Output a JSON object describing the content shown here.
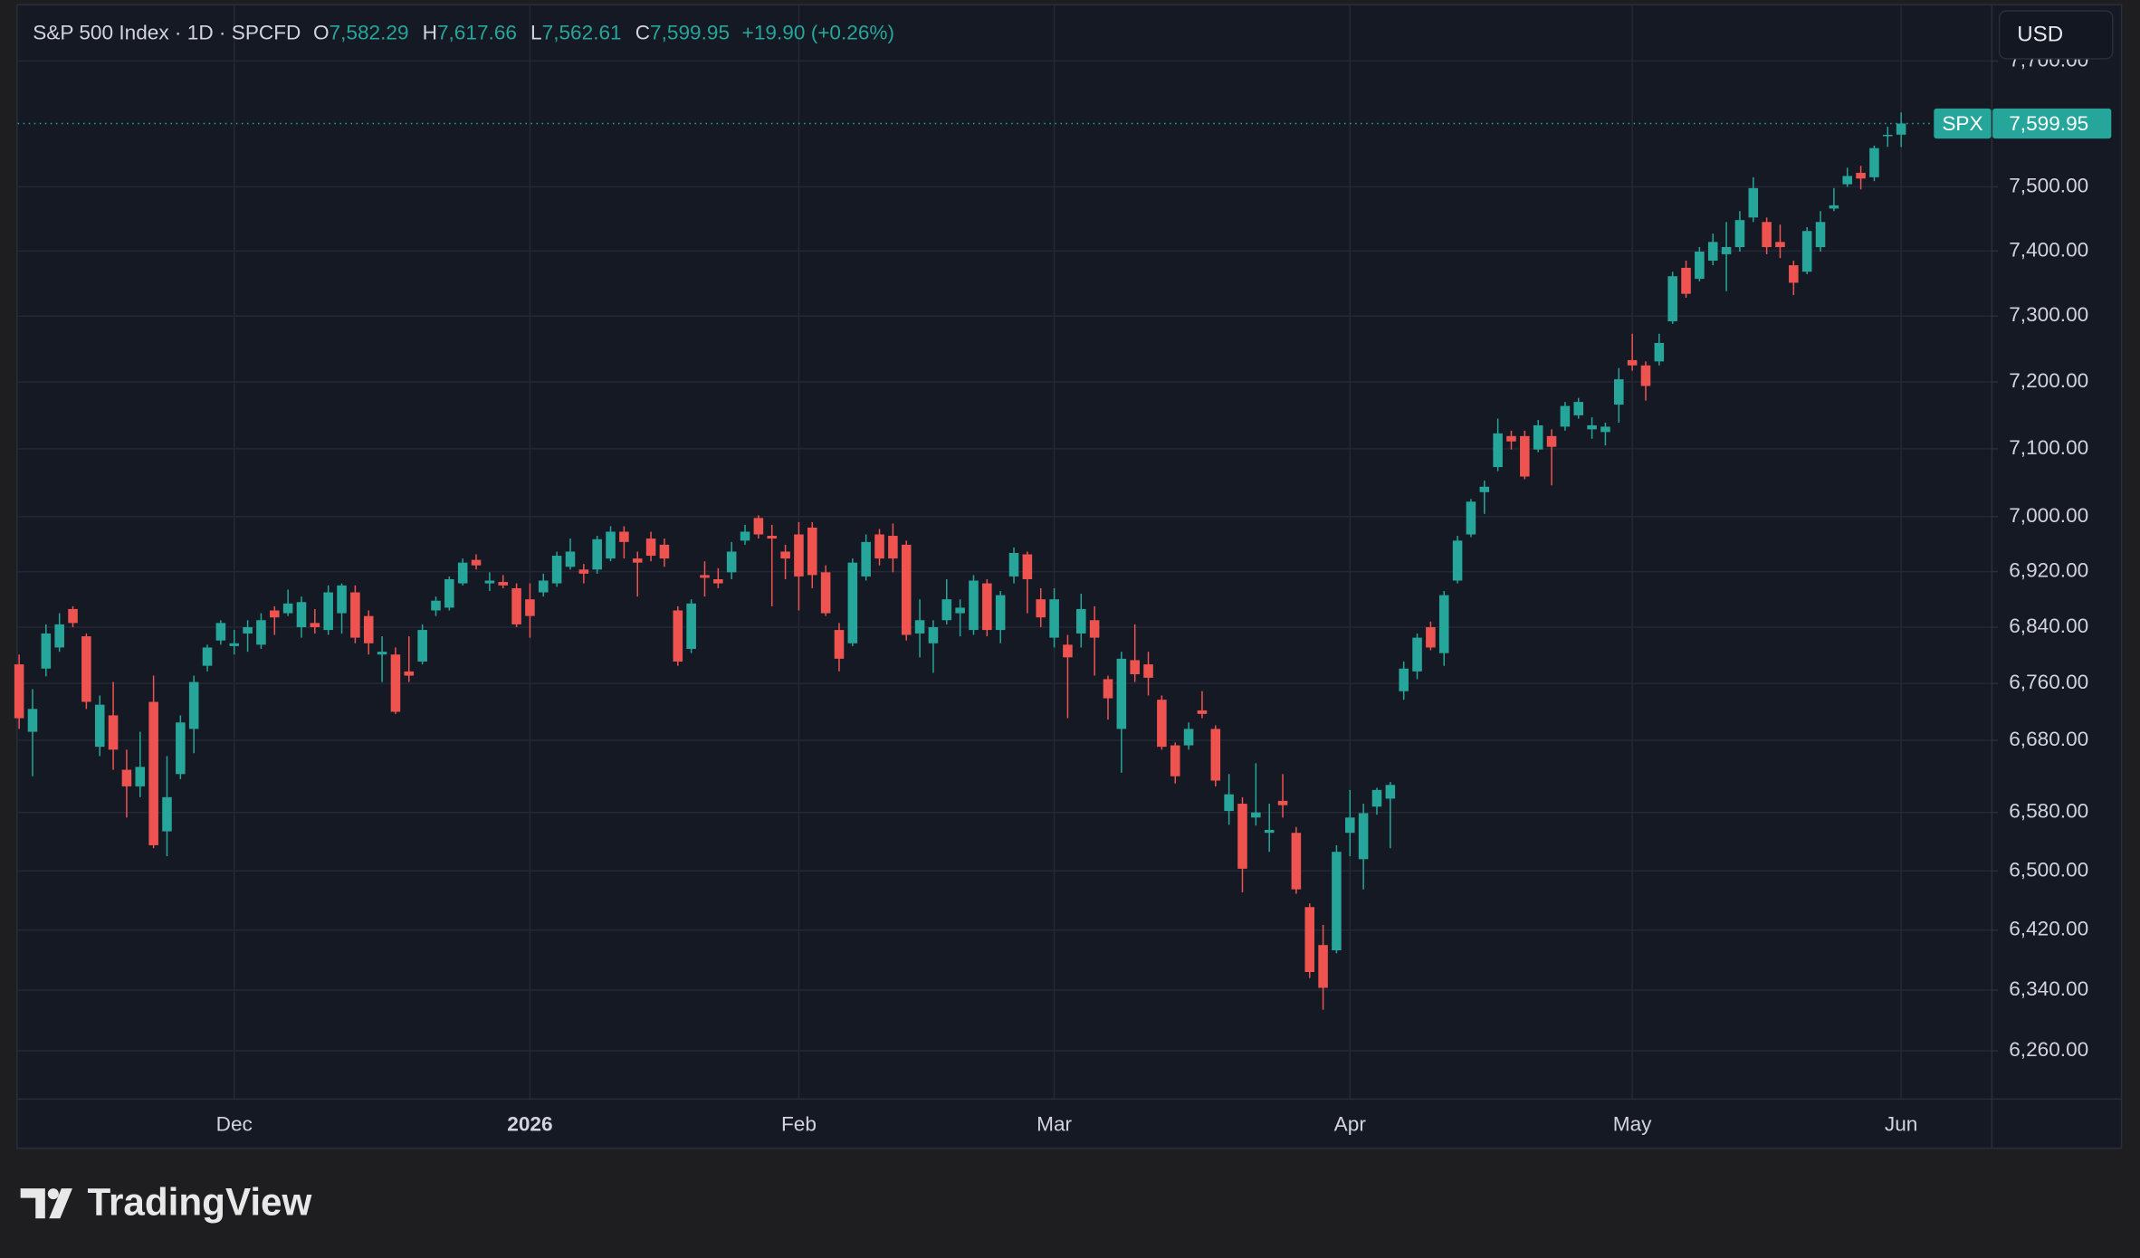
{
  "header": {
    "title": "S&P 500 Index · 1D · SPCFD",
    "fields": [
      {
        "letter": "O",
        "value": "7,582.29"
      },
      {
        "letter": "H",
        "value": "7,617.66"
      },
      {
        "letter": "L",
        "value": "7,562.61"
      },
      {
        "letter": "C",
        "value": "7,599.95"
      }
    ],
    "change": "+19.90 (+0.26%)"
  },
  "currency": "USD",
  "branding": "TradingView",
  "chart_data": {
    "type": "candlestick",
    "log_scale": true,
    "grid": true,
    "up_color": "#26a69a",
    "down_color": "#ef5350",
    "xlim": [
      -0.1,
      146.7
    ],
    "xticks": [
      {
        "value": 16,
        "label": "Dec"
      },
      {
        "value": 38,
        "label": "2026"
      },
      {
        "value": 58,
        "label": "Feb"
      },
      {
        "value": 77,
        "label": "Mar"
      },
      {
        "value": 99,
        "label": "Apr"
      },
      {
        "value": 120,
        "label": "May"
      },
      {
        "value": 140,
        "label": "Jun"
      }
    ],
    "ylim": [
      6198,
      7790
    ],
    "yticks": [
      {
        "value": 6260,
        "label": "6,260.00"
      },
      {
        "value": 6340,
        "label": "6,340.00"
      },
      {
        "value": 6420,
        "label": "6,420.00"
      },
      {
        "value": 6500,
        "label": "6,500.00"
      },
      {
        "value": 6580,
        "label": "6,580.00"
      },
      {
        "value": 6680,
        "label": "6,680.00"
      },
      {
        "value": 6760,
        "label": "6,760.00"
      },
      {
        "value": 6840,
        "label": "6,840.00"
      },
      {
        "value": 6920,
        "label": "6,920.00"
      },
      {
        "value": 7000,
        "label": "7,000.00"
      },
      {
        "value": 7100,
        "label": "7,100.00"
      },
      {
        "value": 7200,
        "label": "7,200.00"
      },
      {
        "value": 7300,
        "label": "7,300.00"
      },
      {
        "value": 7400,
        "label": "7,400.00"
      },
      {
        "value": 7500,
        "label": "7,500.00"
      },
      {
        "value": 7700,
        "label": "7,700.00"
      }
    ],
    "series": [
      {
        "name": "SPX",
        "last_label": "7,599.95",
        "open": [
          6787,
          6692,
          6781,
          6811,
          6866,
          6827,
          6671,
          6715,
          6639,
          6616,
          6734,
          6554,
          6633,
          6696,
          6785,
          6821,
          6813,
          6831,
          6815,
          6864,
          6860,
          6840,
          6846,
          6836,
          6860,
          6890,
          6856,
          6801,
          6801,
          6777,
          6791,
          6864,
          6868,
          6903,
          6937,
          6903,
          6905,
          6896,
          6880,
          6890,
          6903,
          6927,
          6923,
          6923,
          6939,
          6978,
          6939,
          6968,
          6959,
          6864,
          6809,
          6915,
          6909,
          6919,
          6965,
          6998,
          6972,
          6949,
          6974,
          6984,
          6919,
          6836,
          6817,
          6913,
          6974,
          6972,
          6959,
          6831,
          6817,
          6850,
          6860,
          6836,
          6903,
          6836,
          6913,
          6945,
          6880,
          6825,
          6815,
          6831,
          6850,
          6766,
          6696,
          6793,
          6787,
          6737,
          6673,
          6673,
          6722,
          6696,
          6582,
          6592,
          6573,
          6552,
          6596,
          6552,
          6451,
          6400,
          6393,
          6552,
          6516,
          6588,
          6599,
          6749,
          6777,
          6840,
          6803,
          6907,
          6974,
          7036,
          7073,
          7119,
          7119,
          7099,
          7119,
          7133,
          7150,
          7129,
          7125,
          7166,
          7233,
          7225,
          7231,
          7292,
          7374,
          7357,
          7385,
          7395,
          7406,
          7452,
          7445,
          7414,
          7378,
          7368,
          7406,
          7466,
          7504,
          7522,
          7515,
          7580,
          7582.29
        ],
        "high": [
          6801,
          6752,
          6844,
          6860,
          6870,
          6831,
          6743,
          6762,
          6667,
          6692,
          6771,
          6658,
          6715,
          6771,
          6815,
          6850,
          6836,
          6850,
          6860,
          6870,
          6894,
          6884,
          6866,
          6900,
          6903,
          6900,
          6864,
          6827,
          6811,
          6827,
          6844,
          6884,
          6913,
          6939,
          6945,
          6919,
          6915,
          6903,
          6903,
          6917,
          6949,
          6968,
          6931,
          6972,
          6986,
          6986,
          6949,
          6978,
          6968,
          6870,
          6880,
          6935,
          6925,
          6963,
          6988,
          7002,
          6988,
          6959,
          6992,
          6992,
          6929,
          6846,
          6939,
          6974,
          6982,
          6990,
          6965,
          6880,
          6850,
          6909,
          6880,
          6915,
          6909,
          6892,
          6955,
          6949,
          6896,
          6896,
          6829,
          6888,
          6870,
          6771,
          6805,
          6844,
          6805,
          6743,
          6677,
          6705,
          6749,
          6701,
          6633,
          6601,
          6648,
          6592,
          6633,
          6560,
          6456,
          6427,
          6535,
          6611,
          6592,
          6614,
          6622,
          6791,
          6831,
          6848,
          6892,
          6972,
          7026,
          7053,
          7145,
          7127,
          7127,
          7143,
          7129,
          7170,
          7176,
          7147,
          7139,
          7221,
          7273,
          7231,
          7273,
          7368,
          7385,
          7406,
          7427,
          7445,
          7462,
          7515,
          7452,
          7441,
          7385,
          7437,
          7462,
          7498,
          7530,
          7533,
          7565,
          7595,
          7617.66
        ],
        "low": [
          6696,
          6630,
          6770,
          6805,
          6840,
          6724,
          6658,
          6639,
          6573,
          6601,
          6531,
          6520,
          6626,
          6662,
          6777,
          6815,
          6801,
          6805,
          6809,
          6829,
          6856,
          6825,
          6831,
          6829,
          6831,
          6817,
          6801,
          6762,
          6717,
          6762,
          6787,
          6856,
          6864,
          6900,
          6923,
          6892,
          6896,
          6840,
          6825,
          6884,
          6898,
          6923,
          6903,
          6917,
          6935,
          6939,
          6884,
          6935,
          6927,
          6785,
          6803,
          6884,
          6896,
          6909,
          6959,
          6968,
          6870,
          6909,
          6864,
          6896,
          6856,
          6777,
          6813,
          6907,
          6929,
          6919,
          6821,
          6797,
          6775,
          6844,
          6827,
          6829,
          6827,
          6817,
          6903,
          6860,
          6840,
          6811,
          6711,
          6811,
          6771,
          6709,
          6635,
          6762,
          6743,
          6667,
          6620,
          6667,
          6711,
          6616,
          6563,
          6471,
          6562,
          6526,
          6573,
          6469,
          6356,
          6314,
          6389,
          6520,
          6475,
          6577,
          6531,
          6737,
          6766,
          6807,
          6785,
          6903,
          6970,
          7004,
          7067,
          7099,
          7055,
          7095,
          7046,
          7127,
          7145,
          7115,
          7105,
          7139,
          7217,
          7172,
          7225,
          7288,
          7328,
          7353,
          7378,
          7338,
          7399,
          7445,
          7395,
          7389,
          7332,
          7364,
          7399,
          7462,
          7500,
          7496,
          7509,
          7563,
          7562.61
        ],
        "close": [
          6711,
          6724,
          6831,
          6844,
          6846,
          6734,
          6730,
          6667,
          6616,
          6643,
          6535,
          6601,
          6705,
          6762,
          6811,
          6846,
          6817,
          6840,
          6850,
          6854,
          6874,
          6876,
          6840,
          6890,
          6900,
          6825,
          6817,
          6805,
          6720,
          6771,
          6836,
          6878,
          6909,
          6933,
          6929,
          6907,
          6900,
          6844,
          6856,
          6907,
          6943,
          6949,
          6917,
          6967,
          6978,
          6963,
          6933,
          6943,
          6939,
          6791,
          6874,
          6911,
          6903,
          6949,
          6978,
          6974,
          6968,
          6939,
          6913,
          6915,
          6860,
          6795,
          6933,
          6963,
          6939,
          6939,
          6829,
          6850,
          6840,
          6880,
          6868,
          6907,
          6836,
          6886,
          6947,
          6909,
          6854,
          6880,
          6797,
          6866,
          6825,
          6739,
          6795,
          6773,
          6768,
          6671,
          6630,
          6696,
          6717,
          6624,
          6605,
          6503,
          6580,
          6556,
          6590,
          6475,
          6364,
          6343,
          6526,
          6573,
          6579,
          6611,
          6618,
          6781,
          6825,
          6811,
          6886,
          6965,
          7022,
          7044,
          7123,
          7111,
          7059,
          7135,
          7103,
          7164,
          7170,
          7135,
          7133,
          7204,
          7225,
          7194,
          7259,
          7361,
          7334,
          7399,
          7414,
          7406,
          7448,
          7498,
          7406,
          7406,
          7351,
          7431,
          7445,
          7471,
          7517,
          7513,
          7561,
          7582,
          7599.95
        ]
      }
    ]
  }
}
